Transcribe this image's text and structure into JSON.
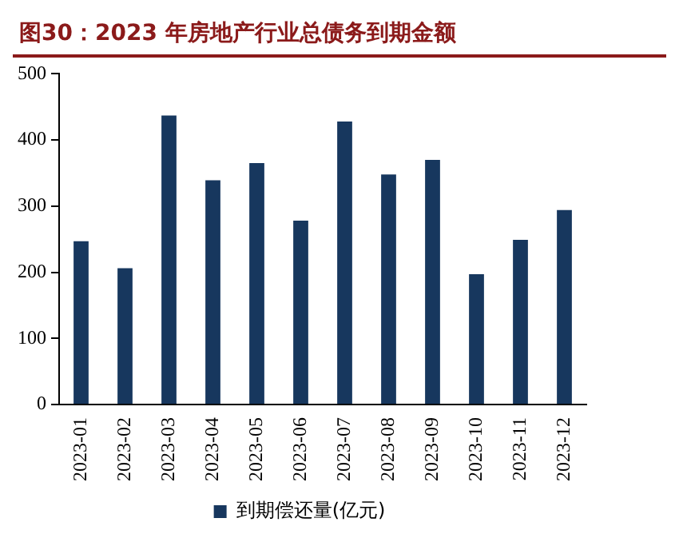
{
  "chart_data": {
    "type": "bar",
    "title": "图30：2023 年房地产行业总债务到期金额",
    "categories": [
      "2023-01",
      "2023-02",
      "2023-03",
      "2023-04",
      "2023-05",
      "2023-06",
      "2023-07",
      "2023-08",
      "2023-09",
      "2023-10",
      "2023-11",
      "2023-12"
    ],
    "series": [
      {
        "name": "到期偿还量(亿元)",
        "color": "#17375e",
        "values": [
          247,
          206,
          437,
          339,
          365,
          278,
          428,
          348,
          370,
          197,
          249,
          294
        ]
      }
    ],
    "ylim": [
      0,
      500
    ],
    "yticks": [
      0,
      100,
      200,
      300,
      400,
      500
    ],
    "grid": false,
    "legend": "bottom"
  }
}
